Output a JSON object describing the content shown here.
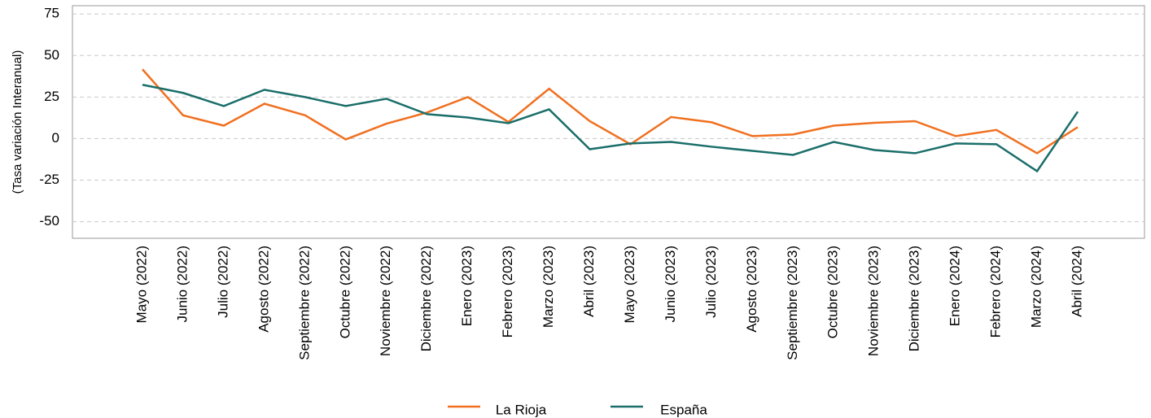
{
  "chart_data": {
    "type": "line",
    "y_label": "(Tasa variación Interanual)",
    "categories": [
      "Mayo (2022)",
      "Junio (2022)",
      "Julio (2022)",
      "Agosto (2022)",
      "Septiembre (2022)",
      "Octubre (2022)",
      "Noviembre (2022)",
      "Diciembre (2022)",
      "Enero (2023)",
      "Febrero (2023)",
      "Marzo (2023)",
      "Abril (2023)",
      "Mayo (2023)",
      "Junio (2023)",
      "Julio (2023)",
      "Agosto (2023)",
      "Septiembre (2023)",
      "Octubre (2023)",
      "Noviembre (2023)",
      "Diciembre (2023)",
      "Enero (2024)",
      "Febrero (2024)",
      "Marzo (2024)",
      "Abril (2024)"
    ],
    "series": [
      {
        "name": "La Rioja",
        "color": "#f07020",
        "values": [
          41.7,
          14,
          7.8,
          21,
          14,
          -0.5,
          9,
          15.7,
          25,
          10,
          30,
          10.5,
          -3.4,
          13,
          9.8,
          1.5,
          2.5,
          7.8,
          9.5,
          10.5,
          1.5,
          5.2,
          -8.8,
          6.9
        ]
      },
      {
        "name": "España",
        "color": "#1a6e6a",
        "values": [
          32.4,
          27.5,
          19.6,
          29.4,
          25,
          19.6,
          24,
          14.7,
          12.7,
          9.3,
          17.6,
          -6.4,
          -2.9,
          -2,
          -4.9,
          -7.4,
          -9.8,
          -2,
          -6.9,
          -8.8,
          -2.9,
          -3.4,
          -19.6,
          16.2
        ]
      }
    ],
    "ylim": [
      -60,
      80
    ],
    "yticks": [
      -50,
      -25,
      0,
      25,
      50,
      75
    ],
    "grid": true
  }
}
